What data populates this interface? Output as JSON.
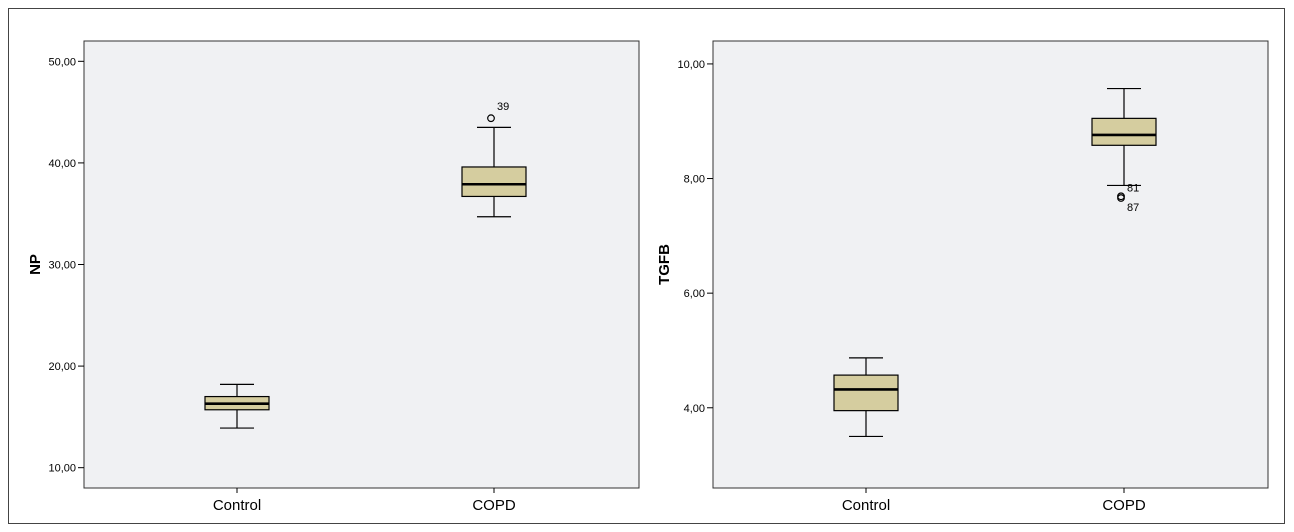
{
  "chart_data": [
    {
      "type": "boxplot",
      "title": "",
      "xlabel": "",
      "ylabel": "NP",
      "ylim": [
        8,
        52
      ],
      "yticks": [
        10,
        20,
        30,
        40,
        50
      ],
      "ytick_labels": [
        "10,00",
        "20,00",
        "30,00",
        "40,00",
        "50,00"
      ],
      "box_color": "#d5cd9f",
      "grid": false,
      "categories": [
        "Control",
        "COPD"
      ],
      "boxes": [
        {
          "category": "Control",
          "whisker_low": 13.9,
          "q1": 15.7,
          "median": 16.3,
          "q3": 17.0,
          "whisker_high": 18.2,
          "outliers": []
        },
        {
          "category": "COPD",
          "whisker_low": 34.7,
          "q1": 36.7,
          "median": 37.9,
          "q3": 39.6,
          "whisker_high": 43.5,
          "outliers": [
            {
              "value": 44.4,
              "label": "39"
            }
          ]
        }
      ]
    },
    {
      "type": "boxplot",
      "title": "",
      "xlabel": "",
      "ylabel": "TGFB",
      "ylim": [
        2.6,
        10.4
      ],
      "yticks": [
        4,
        6,
        8,
        10
      ],
      "ytick_labels": [
        "4,00",
        "6,00",
        "8,00",
        "10,00"
      ],
      "box_color": "#d5cd9f",
      "grid": false,
      "categories": [
        "Control",
        "COPD"
      ],
      "boxes": [
        {
          "category": "Control",
          "whisker_low": 3.5,
          "q1": 3.95,
          "median": 4.32,
          "q3": 4.57,
          "whisker_high": 4.87,
          "outliers": []
        },
        {
          "category": "COPD",
          "whisker_low": 7.88,
          "q1": 8.58,
          "median": 8.76,
          "q3": 9.05,
          "whisker_high": 9.57,
          "outliers": [
            {
              "value": 7.69,
              "label": "81"
            },
            {
              "value": 7.66,
              "label": "87"
            }
          ]
        }
      ]
    }
  ]
}
